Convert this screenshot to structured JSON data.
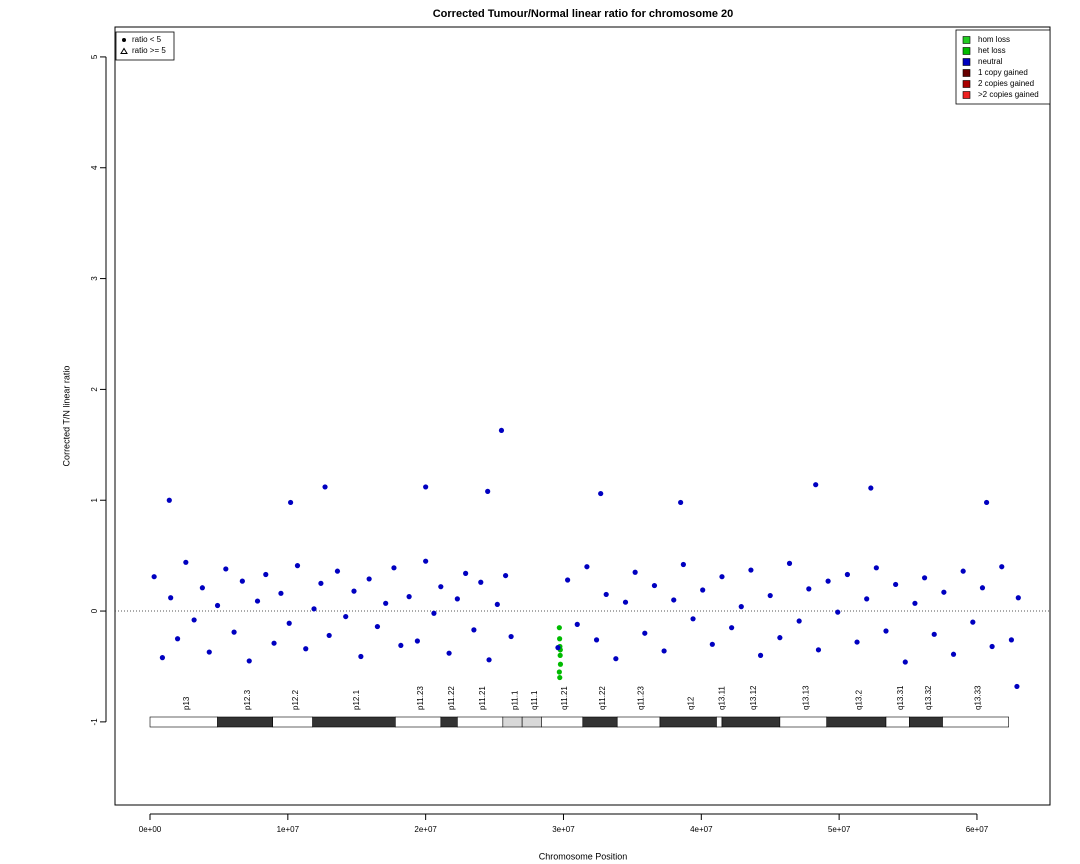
{
  "chart_data": {
    "type": "scatter",
    "title": "Corrected Tumour/Normal linear ratio for chromosome  20",
    "x_label": "Chromosome Position",
    "y_label": "Corrected T/N linear ratio",
    "xlim": [
      -2540000,
      65300000
    ],
    "ylim": [
      -1.75,
      5.27
    ],
    "xticks": [
      {
        "value": 0,
        "label": "0e+00"
      },
      {
        "value": 10000000,
        "label": "1e+07"
      },
      {
        "value": 20000000,
        "label": "2e+07"
      },
      {
        "value": 30000000,
        "label": "3e+07"
      },
      {
        "value": 40000000,
        "label": "4e+07"
      },
      {
        "value": 50000000,
        "label": "5e+07"
      },
      {
        "value": 60000000,
        "label": "6e+07"
      }
    ],
    "yticks": [
      -1,
      0,
      1,
      2,
      3,
      4,
      5
    ],
    "hline": 0,
    "shape_legend": [
      "ratio < 5",
      "ratio >= 5"
    ],
    "series": [
      {
        "name": "hom loss",
        "color": "#22cc22",
        "x": [],
        "values": []
      },
      {
        "name": "het loss",
        "color": "#00bb00",
        "x": [
          29700000,
          29720000,
          29740000,
          29760000,
          29780000,
          29700000,
          29730000,
          29770000
        ],
        "values": [
          -0.15,
          -0.25,
          -0.32,
          -0.4,
          -0.48,
          -0.55,
          -0.6,
          -0.35
        ]
      },
      {
        "name": "neutral",
        "color": "#0000c0",
        "x": [
          300000,
          900000,
          1500000,
          2000000,
          2600000,
          3200000,
          3800000,
          4300000,
          4900000,
          5500000,
          6100000,
          6700000,
          7200000,
          7800000,
          8400000,
          9000000,
          9500000,
          10100000,
          10700000,
          11300000,
          11900000,
          12400000,
          13000000,
          13600000,
          14200000,
          14800000,
          15300000,
          15900000,
          16500000,
          17100000,
          17700000,
          18200000,
          18800000,
          19400000,
          20000000,
          20600000,
          21100000,
          21700000,
          22300000,
          22900000,
          23500000,
          24000000,
          24600000,
          25200000,
          25800000,
          26200000,
          1400000,
          10200000,
          12700000,
          20000000,
          24500000,
          25500000,
          29600000,
          30300000,
          31000000,
          31700000,
          32400000,
          33100000,
          33800000,
          34500000,
          35200000,
          35900000,
          36600000,
          37300000,
          38000000,
          38700000,
          39400000,
          40100000,
          40800000,
          41500000,
          42200000,
          42900000,
          43600000,
          44300000,
          45000000,
          45700000,
          46400000,
          47100000,
          47800000,
          48500000,
          49200000,
          49900000,
          50600000,
          51300000,
          52000000,
          52700000,
          53400000,
          54100000,
          54800000,
          55500000,
          56200000,
          56900000,
          57600000,
          58300000,
          59000000,
          59700000,
          60400000,
          61100000,
          61800000,
          62500000,
          63000000,
          32700000,
          38500000,
          48300000,
          52300000,
          60700000,
          62900000
        ],
        "values": [
          0.31,
          -0.42,
          0.12,
          -0.25,
          0.44,
          -0.08,
          0.21,
          -0.37,
          0.05,
          0.38,
          -0.19,
          0.27,
          -0.45,
          0.09,
          0.33,
          -0.29,
          0.16,
          -0.11,
          0.41,
          -0.34,
          0.02,
          0.25,
          -0.22,
          0.36,
          -0.05,
          0.18,
          -0.41,
          0.29,
          -0.14,
          0.07,
          0.39,
          -0.31,
          0.13,
          -0.27,
          0.45,
          -0.02,
          0.22,
          -0.38,
          0.11,
          0.34,
          -0.17,
          0.26,
          -0.44,
          0.06,
          0.32,
          -0.23,
          1.0,
          0.98,
          1.12,
          1.12,
          1.08,
          1.63,
          -0.33,
          0.28,
          -0.12,
          0.4,
          -0.26,
          0.15,
          -0.43,
          0.08,
          0.35,
          -0.2,
          0.23,
          -0.36,
          0.1,
          0.42,
          -0.07,
          0.19,
          -0.3,
          0.31,
          -0.15,
          0.04,
          0.37,
          -0.4,
          0.14,
          -0.24,
          0.43,
          -0.09,
          0.2,
          -0.35,
          0.27,
          -0.01,
          0.33,
          -0.28,
          0.11,
          0.39,
          -0.18,
          0.24,
          -0.46,
          0.07,
          0.3,
          -0.21,
          0.17,
          -0.39,
          0.36,
          -0.1,
          0.21,
          -0.32,
          0.4,
          -0.26,
          0.12,
          1.06,
          0.98,
          1.14,
          1.11,
          0.98,
          -0.68
        ]
      },
      {
        "name": "1 copy gained",
        "color": "#660000",
        "x": [],
        "values": []
      },
      {
        "name": "2 copies gained",
        "color": "#aa0000",
        "x": [],
        "values": []
      },
      {
        "name": ">2 copies gained",
        "color": "#ee2222",
        "x": [],
        "values": []
      }
    ],
    "ideogram": [
      {
        "name": "p13",
        "start": 0,
        "end": 4900000,
        "color": "#ffffff"
      },
      {
        "name": "p12.3",
        "start": 4900000,
        "end": 8900000,
        "color": "#333333"
      },
      {
        "name": "p12.2",
        "start": 8900000,
        "end": 11800000,
        "color": "#ffffff"
      },
      {
        "name": "p12.1",
        "start": 11800000,
        "end": 17800000,
        "color": "#333333"
      },
      {
        "name": "p11.23",
        "start": 17800000,
        "end": 21100000,
        "color": "#ffffff"
      },
      {
        "name": "p11.22",
        "start": 21100000,
        "end": 22300000,
        "color": "#333333"
      },
      {
        "name": "p11.21",
        "start": 22300000,
        "end": 25600000,
        "color": "#ffffff"
      },
      {
        "name": "p11.1",
        "start": 25600000,
        "end": 27000000,
        "color": "#d8d8d8"
      },
      {
        "name": "q11.1",
        "start": 27000000,
        "end": 28400000,
        "color": "#d8d8d8"
      },
      {
        "name": "q11.21",
        "start": 28400000,
        "end": 31400000,
        "color": "#ffffff"
      },
      {
        "name": "q11.22",
        "start": 31400000,
        "end": 33900000,
        "color": "#333333"
      },
      {
        "name": "q11.23",
        "start": 33900000,
        "end": 37000000,
        "color": "#ffffff"
      },
      {
        "name": "q12",
        "start": 37000000,
        "end": 41100000,
        "color": "#333333"
      },
      {
        "name": "q13.11",
        "start": 41100000,
        "end": 41500000,
        "color": "#ffffff"
      },
      {
        "name": "q13.12",
        "start": 41500000,
        "end": 45700000,
        "color": "#333333"
      },
      {
        "name": "q13.13",
        "start": 45700000,
        "end": 49100000,
        "color": "#ffffff"
      },
      {
        "name": "q13.2",
        "start": 49100000,
        "end": 53400000,
        "color": "#333333"
      },
      {
        "name": "q13.31",
        "start": 53400000,
        "end": 55100000,
        "color": "#ffffff"
      },
      {
        "name": "q13.32",
        "start": 55100000,
        "end": 57500000,
        "color": "#333333"
      },
      {
        "name": "q13.33",
        "start": 57500000,
        "end": 62300000,
        "color": "#ffffff"
      }
    ]
  }
}
